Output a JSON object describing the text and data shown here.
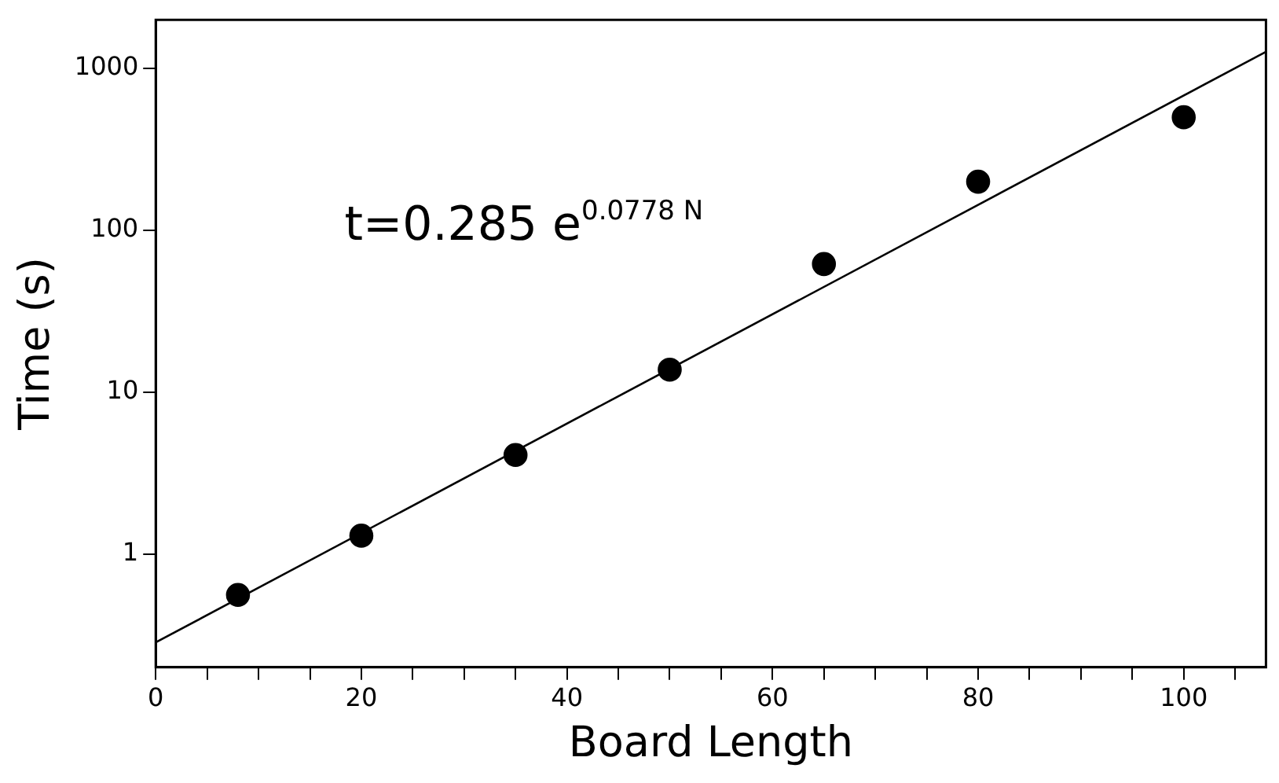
{
  "chart_data": {
    "type": "scatter",
    "xlabel": "Board Length",
    "ylabel": "Time (s)",
    "log": "y",
    "xlim": [
      0,
      108
    ],
    "ylim": [
      0.2,
      2000
    ],
    "xticks": [
      0,
      {
        "value": 5,
        "label": null
      },
      {
        "value": 10,
        "label": null
      },
      {
        "value": 15,
        "label": null
      },
      20,
      {
        "value": 25,
        "label": null
      },
      {
        "value": 30,
        "label": null
      },
      {
        "value": 35,
        "label": null
      },
      40,
      {
        "value": 45,
        "label": null
      },
      {
        "value": 50,
        "label": null
      },
      {
        "value": 55,
        "label": null
      },
      60,
      {
        "value": 65,
        "label": null
      },
      {
        "value": 70,
        "label": null
      },
      {
        "value": 75,
        "label": null
      },
      80,
      {
        "value": 85,
        "label": null
      },
      {
        "value": 90,
        "label": null
      },
      {
        "value": 95,
        "label": null
      },
      100,
      {
        "value": 105,
        "label": null
      }
    ],
    "yticks": [
      1,
      10,
      100,
      1000
    ],
    "grid": false,
    "legend": false,
    "marker": "circle",
    "series": [
      {
        "color": "#000000",
        "x": [
          8,
          20,
          35,
          50,
          65,
          80,
          100
        ],
        "values": [
          0.56,
          1.3,
          4.1,
          13.8,
          62,
          200,
          500
        ]
      },
      {
        "type": "line",
        "color": "#000000",
        "marker": "none",
        "line_style": "solid",
        "x": [
          0,
          108
        ],
        "values": [
          0.285,
          1270
        ]
      }
    ],
    "annotations": [
      "t=0.285 e$^{0.0778 N}$"
    ]
  }
}
